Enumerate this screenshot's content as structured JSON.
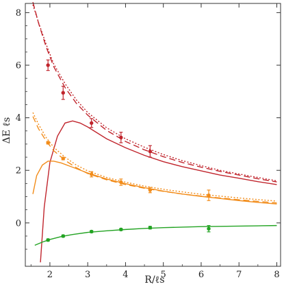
{
  "chart_data": {
    "type": "scatter",
    "title": "",
    "xlabel": "R/ℓs",
    "ylabel": "ΔE ℓs",
    "xlim": [
      1.35,
      8.1
    ],
    "ylim": [
      -1.65,
      8.35
    ],
    "xticks": [
      2,
      3,
      4,
      5,
      6,
      7,
      8
    ],
    "yticks": [
      0,
      2,
      4,
      6,
      8
    ],
    "grid": false,
    "legend": "none",
    "series": [
      {
        "color": "#c0242c",
        "points": [
          {
            "x": 1.95,
            "y": 6.0,
            "err": 0.2
          },
          {
            "x": 2.35,
            "y": 4.95,
            "err": 0.25
          },
          {
            "x": 3.1,
            "y": 3.8,
            "err": 0.17
          },
          {
            "x": 3.88,
            "y": 3.25,
            "err": 0.2
          },
          {
            "x": 4.65,
            "y": 2.72,
            "err": 0.22
          }
        ],
        "curve_solid": [
          [
            1.75,
            -1.5
          ],
          [
            1.85,
            0.6
          ],
          [
            2.0,
            2.3
          ],
          [
            2.2,
            3.3
          ],
          [
            2.4,
            3.8
          ],
          [
            2.6,
            3.88
          ],
          [
            2.8,
            3.8
          ],
          [
            3.0,
            3.65
          ],
          [
            3.5,
            3.2
          ],
          [
            4.0,
            2.86
          ],
          [
            4.5,
            2.57
          ],
          [
            5.0,
            2.33
          ],
          [
            5.5,
            2.14
          ],
          [
            6.0,
            1.98
          ],
          [
            6.5,
            1.82
          ],
          [
            7.0,
            1.7
          ],
          [
            7.5,
            1.57
          ],
          [
            8.0,
            1.46
          ]
        ],
        "curve_dotted": [
          [
            1.55,
            8.3
          ],
          [
            1.7,
            7.62
          ],
          [
            1.9,
            6.8
          ],
          [
            2.1,
            6.05
          ],
          [
            2.4,
            5.3
          ],
          [
            2.7,
            4.68
          ],
          [
            3.0,
            4.2
          ],
          [
            3.5,
            3.62
          ],
          [
            4.0,
            3.2
          ],
          [
            4.5,
            2.88
          ],
          [
            5.0,
            2.6
          ],
          [
            5.5,
            2.37
          ],
          [
            6.0,
            2.18
          ],
          [
            6.5,
            2.0
          ],
          [
            7.0,
            1.86
          ],
          [
            7.5,
            1.73
          ],
          [
            8.0,
            1.6
          ]
        ],
        "curve_dashed": [
          [
            1.55,
            8.4
          ],
          [
            1.7,
            7.6
          ],
          [
            1.9,
            6.7
          ],
          [
            2.1,
            5.95
          ],
          [
            2.4,
            5.15
          ],
          [
            2.7,
            4.55
          ],
          [
            3.0,
            4.1
          ],
          [
            3.5,
            3.52
          ],
          [
            4.0,
            3.1
          ],
          [
            4.5,
            2.78
          ],
          [
            5.0,
            2.52
          ],
          [
            5.5,
            2.3
          ],
          [
            6.0,
            2.12
          ],
          [
            6.5,
            1.96
          ],
          [
            7.0,
            1.82
          ],
          [
            7.5,
            1.68
          ],
          [
            8.0,
            1.56
          ]
        ]
      },
      {
        "color": "#f28c1a",
        "points": [
          {
            "x": 1.95,
            "y": 3.05,
            "err": 0.05
          },
          {
            "x": 2.35,
            "y": 2.45,
            "err": 0.05
          },
          {
            "x": 3.1,
            "y": 1.85,
            "err": 0.1
          },
          {
            "x": 3.88,
            "y": 1.55,
            "err": 0.12
          },
          {
            "x": 4.65,
            "y": 1.25,
            "err": 0.1
          },
          {
            "x": 6.2,
            "y": 1.05,
            "err": 0.2
          }
        ],
        "curve_solid": [
          [
            1.55,
            1.1
          ],
          [
            1.65,
            1.8
          ],
          [
            1.8,
            2.2
          ],
          [
            1.95,
            2.35
          ],
          [
            2.1,
            2.35
          ],
          [
            2.3,
            2.28
          ],
          [
            2.6,
            2.12
          ],
          [
            3.0,
            1.9
          ],
          [
            3.5,
            1.67
          ],
          [
            4.0,
            1.49
          ],
          [
            4.5,
            1.34
          ],
          [
            5.0,
            1.21
          ],
          [
            5.5,
            1.1
          ],
          [
            6.0,
            1.01
          ],
          [
            6.5,
            0.93
          ],
          [
            7.0,
            0.85
          ],
          [
            7.5,
            0.78
          ],
          [
            8.0,
            0.72
          ]
        ],
        "curve_dotted": [
          [
            1.55,
            4.2
          ],
          [
            1.7,
            3.75
          ],
          [
            1.9,
            3.25
          ],
          [
            2.1,
            2.88
          ],
          [
            2.4,
            2.5
          ],
          [
            2.7,
            2.2
          ],
          [
            3.0,
            1.98
          ],
          [
            3.5,
            1.73
          ],
          [
            4.0,
            1.55
          ],
          [
            4.5,
            1.4
          ],
          [
            5.0,
            1.28
          ],
          [
            5.5,
            1.18
          ],
          [
            6.0,
            1.09
          ],
          [
            6.5,
            1.02
          ],
          [
            7.0,
            0.95
          ],
          [
            7.5,
            0.89
          ],
          [
            8.0,
            0.83
          ]
        ],
        "curve_dashed": [
          [
            1.55,
            4.05
          ],
          [
            1.7,
            3.58
          ],
          [
            1.9,
            3.12
          ],
          [
            2.1,
            2.75
          ],
          [
            2.4,
            2.38
          ],
          [
            2.7,
            2.1
          ],
          [
            3.0,
            1.88
          ],
          [
            3.5,
            1.64
          ],
          [
            4.0,
            1.46
          ],
          [
            4.5,
            1.32
          ],
          [
            5.0,
            1.2
          ],
          [
            5.5,
            1.1
          ],
          [
            6.0,
            1.02
          ],
          [
            6.5,
            0.95
          ],
          [
            7.0,
            0.88
          ],
          [
            7.5,
            0.82
          ],
          [
            8.0,
            0.76
          ]
        ]
      },
      {
        "color": "#22a322",
        "points": [
          {
            "x": 1.95,
            "y": -0.65,
            "err": 0.04
          },
          {
            "x": 2.35,
            "y": -0.5,
            "err": 0.04
          },
          {
            "x": 3.1,
            "y": -0.33,
            "err": 0.04
          },
          {
            "x": 3.88,
            "y": -0.25,
            "err": 0.04
          },
          {
            "x": 4.65,
            "y": -0.18,
            "err": 0.05
          },
          {
            "x": 6.2,
            "y": -0.22,
            "err": 0.12
          }
        ],
        "curve_solid": [
          [
            1.6,
            -0.85
          ],
          [
            1.8,
            -0.73
          ],
          [
            2.0,
            -0.63
          ],
          [
            2.3,
            -0.52
          ],
          [
            2.6,
            -0.44
          ],
          [
            3.0,
            -0.36
          ],
          [
            3.5,
            -0.3
          ],
          [
            4.0,
            -0.25
          ],
          [
            4.5,
            -0.21
          ],
          [
            5.0,
            -0.18
          ],
          [
            5.5,
            -0.16
          ],
          [
            6.0,
            -0.14
          ],
          [
            6.5,
            -0.13
          ],
          [
            7.0,
            -0.12
          ],
          [
            7.5,
            -0.11
          ],
          [
            8.0,
            -0.1
          ]
        ]
      }
    ]
  }
}
